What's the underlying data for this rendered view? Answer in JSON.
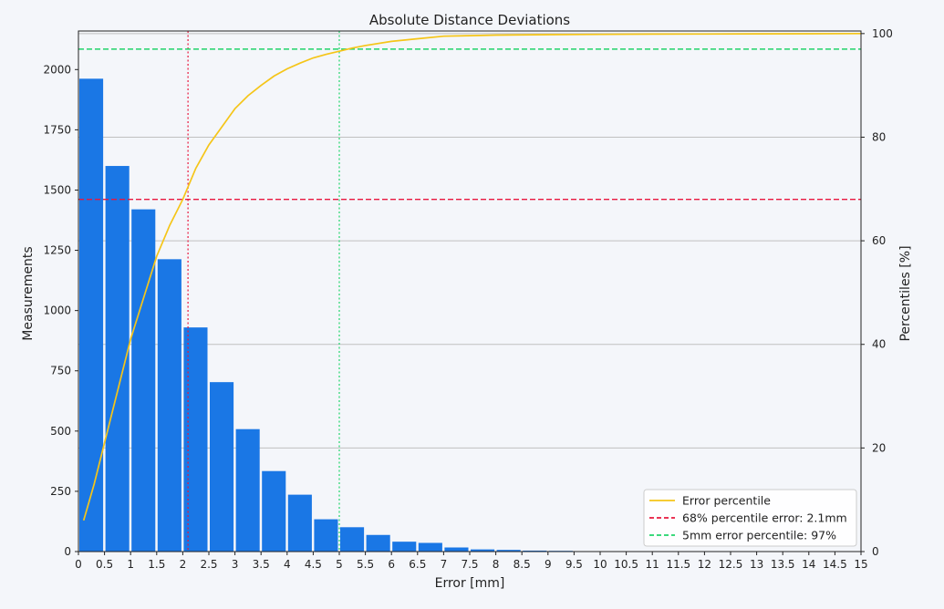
{
  "chart_data": {
    "type": "bar",
    "title": "Absolute Distance Deviations",
    "xlabel": "Error [mm]",
    "ylabel": "Measurements",
    "y2label": "Percentiles [%]",
    "xlim": [
      0,
      15
    ],
    "ylim": [
      0,
      2160
    ],
    "y2lim": [
      0,
      100.5
    ],
    "bin_width": 0.5,
    "x_ticks": [
      "0",
      "0.5",
      "1",
      "1.5",
      "2",
      "2.5",
      "3",
      "3.5",
      "4",
      "4.5",
      "5",
      "5.5",
      "6",
      "6.5",
      "7",
      "7.5",
      "8",
      "8.5",
      "9",
      "9.5",
      "10",
      "10.5",
      "11",
      "11.5",
      "12",
      "12.5",
      "13",
      "13.5",
      "14",
      "14.5",
      "15"
    ],
    "y_ticks": [
      0,
      250,
      500,
      750,
      1000,
      1250,
      1500,
      1750,
      2000
    ],
    "y2_ticks": [
      0,
      20,
      40,
      60,
      80,
      100
    ],
    "grid": "horizontal on right axis",
    "legend_position": "lower-right",
    "colors": {
      "bars": "#1a77e5",
      "percentile": "#f5c518",
      "p68": "#e8173e",
      "p5mm": "#21d46b",
      "grid": "#c0c0c0"
    },
    "bars": {
      "x": [
        0,
        0.5,
        1,
        1.5,
        2,
        2.5,
        3,
        3.5,
        4,
        4.5,
        5,
        5.5,
        6,
        6.5,
        7,
        7.5,
        8,
        8.5,
        9
      ],
      "values": [
        1962,
        1600,
        1420,
        1213,
        930,
        703,
        508,
        334,
        236,
        134,
        101,
        69,
        41,
        36,
        17,
        9,
        7,
        4,
        3
      ]
    },
    "series": [
      {
        "name": "Error percentile",
        "x": [
          0.1,
          0.3,
          0.5,
          0.75,
          1,
          1.25,
          1.5,
          1.75,
          2,
          2.25,
          2.5,
          2.75,
          3,
          3.25,
          3.5,
          3.75,
          4,
          4.25,
          4.5,
          4.75,
          5,
          5.25,
          5.5,
          6,
          6.5,
          7,
          7.5,
          8,
          9,
          10,
          11,
          12,
          13,
          14,
          15
        ],
        "values": [
          6,
          13,
          21,
          31,
          41,
          49,
          57,
          63,
          68,
          74,
          78.5,
          82,
          85.5,
          88,
          90,
          91.8,
          93.2,
          94.3,
          95.3,
          96,
          96.6,
          97.2,
          97.7,
          98.5,
          99,
          99.5,
          99.6,
          99.7,
          99.8,
          99.85,
          99.9,
          99.92,
          99.95,
          99.97,
          100
        ]
      }
    ],
    "reference_lines": [
      {
        "name": "68% percentile error: 2.1mm",
        "orientation": "horizontal",
        "axis": "y2",
        "value": 68,
        "style": "dashed"
      },
      {
        "name": "68% percentile error: 2.1mm",
        "orientation": "vertical",
        "axis": "x",
        "value": 2.1,
        "style": "dotted"
      },
      {
        "name": "5mm error percentile: 97%",
        "orientation": "horizontal",
        "axis": "y2",
        "value": 97,
        "style": "dashed"
      },
      {
        "name": "5mm error percentile: 97%",
        "orientation": "vertical",
        "axis": "x",
        "value": 5,
        "style": "dotted"
      }
    ],
    "legend": [
      "Error percentile",
      "68% percentile error: 2.1mm",
      "5mm error percentile: 97%"
    ]
  }
}
